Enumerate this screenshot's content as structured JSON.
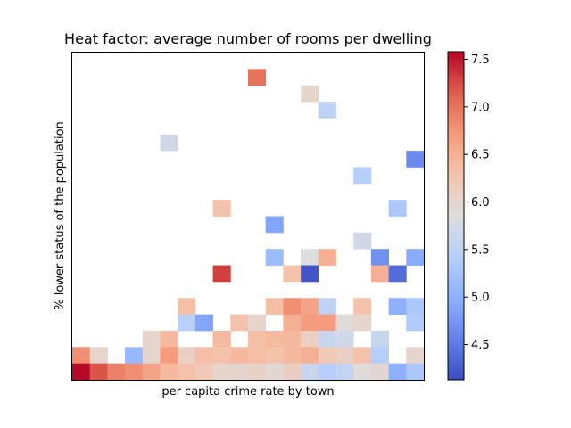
{
  "chart_data": {
    "type": "heatmap",
    "title": "Heat factor: average number of rooms per dwelling",
    "xlabel": "per capita crime rate by town",
    "ylabel": "% lower status of the population",
    "x_ticks_shown": false,
    "y_ticks_shown": false,
    "n_cols": 20,
    "n_rows": 20,
    "colormap": "coolwarm",
    "vmin": 4.13,
    "vmax": 7.58,
    "colorbar_ticks": [
      "4.5",
      "5.0",
      "5.5",
      "6.0",
      "6.5",
      "7.0",
      "7.5"
    ],
    "colorbar_tick_values": [
      4.5,
      5.0,
      5.5,
      6.0,
      6.5,
      7.0,
      7.5
    ],
    "grid": false,
    "note_rows": "row 0 = top of plot; null = empty (white) cell",
    "cells": [
      [
        null,
        null,
        null,
        null,
        null,
        null,
        null,
        null,
        null,
        null,
        null,
        null,
        null,
        null,
        null,
        null,
        null,
        null,
        null,
        null
      ],
      [
        null,
        null,
        null,
        null,
        null,
        null,
        null,
        null,
        null,
        null,
        7.0,
        null,
        null,
        null,
        null,
        null,
        null,
        null,
        null,
        null
      ],
      [
        null,
        null,
        null,
        null,
        null,
        null,
        null,
        null,
        null,
        null,
        null,
        null,
        null,
        6.0,
        null,
        null,
        null,
        null,
        null,
        null
      ],
      [
        null,
        null,
        null,
        null,
        null,
        null,
        null,
        null,
        null,
        null,
        null,
        null,
        null,
        null,
        5.5,
        null,
        null,
        null,
        null,
        null
      ],
      [
        null,
        null,
        null,
        null,
        null,
        null,
        null,
        null,
        null,
        null,
        null,
        null,
        null,
        null,
        null,
        null,
        null,
        null,
        null,
        null
      ],
      [
        null,
        null,
        null,
        null,
        null,
        5.7,
        null,
        null,
        null,
        null,
        null,
        null,
        null,
        null,
        null,
        null,
        null,
        null,
        null,
        null
      ],
      [
        null,
        null,
        null,
        null,
        null,
        null,
        null,
        null,
        null,
        null,
        null,
        null,
        null,
        null,
        null,
        null,
        null,
        null,
        null,
        4.65
      ],
      [
        null,
        null,
        null,
        null,
        null,
        null,
        null,
        null,
        null,
        null,
        null,
        null,
        null,
        null,
        null,
        null,
        5.4,
        null,
        null,
        null
      ],
      [
        null,
        null,
        null,
        null,
        null,
        null,
        null,
        null,
        null,
        null,
        null,
        null,
        null,
        null,
        null,
        null,
        null,
        null,
        null,
        null
      ],
      [
        null,
        null,
        null,
        null,
        null,
        null,
        null,
        null,
        6.3,
        null,
        null,
        null,
        null,
        null,
        null,
        null,
        null,
        null,
        5.3,
        null
      ],
      [
        null,
        null,
        null,
        null,
        null,
        null,
        null,
        null,
        null,
        null,
        null,
        4.9,
        null,
        null,
        null,
        null,
        null,
        null,
        null,
        null
      ],
      [
        null,
        null,
        null,
        null,
        null,
        null,
        null,
        null,
        null,
        null,
        null,
        null,
        null,
        null,
        null,
        null,
        5.7,
        null,
        null,
        null
      ],
      [
        null,
        null,
        null,
        null,
        null,
        null,
        null,
        null,
        null,
        null,
        null,
        5.15,
        null,
        5.85,
        6.5,
        null,
        null,
        4.7,
        null,
        4.95
      ],
      [
        null,
        null,
        null,
        null,
        null,
        null,
        null,
        null,
        7.3,
        null,
        null,
        null,
        6.3,
        4.2,
        null,
        null,
        null,
        6.5,
        4.4,
        null
      ],
      [
        null,
        null,
        null,
        null,
        null,
        null,
        null,
        null,
        null,
        null,
        null,
        null,
        null,
        null,
        null,
        null,
        null,
        null,
        null,
        null
      ],
      [
        null,
        null,
        null,
        null,
        null,
        null,
        6.35,
        null,
        null,
        null,
        null,
        6.35,
        6.8,
        6.6,
        5.5,
        null,
        6.3,
        null,
        5.0,
        5.3
      ],
      [
        null,
        null,
        null,
        null,
        null,
        null,
        5.45,
        4.9,
        null,
        6.3,
        6.0,
        null,
        6.5,
        6.7,
        6.7,
        5.9,
        6.0,
        null,
        null,
        5.35
      ],
      [
        null,
        null,
        null,
        null,
        6.0,
        6.4,
        null,
        null,
        6.4,
        null,
        6.35,
        6.4,
        6.4,
        6.1,
        5.6,
        5.7,
        null,
        5.6,
        null,
        null
      ],
      [
        6.8,
        6.0,
        null,
        5.1,
        6.0,
        6.7,
        6.1,
        6.35,
        6.3,
        6.4,
        6.35,
        6.3,
        6.4,
        6.5,
        6.2,
        6.1,
        6.3,
        5.4,
        null,
        6.0
      ],
      [
        7.55,
        7.2,
        6.9,
        6.8,
        6.6,
        6.4,
        6.3,
        6.2,
        6.0,
        6.0,
        6.05,
        5.95,
        6.1,
        5.6,
        5.4,
        5.55,
        5.9,
        5.95,
        5.0,
        5.3
      ]
    ]
  }
}
